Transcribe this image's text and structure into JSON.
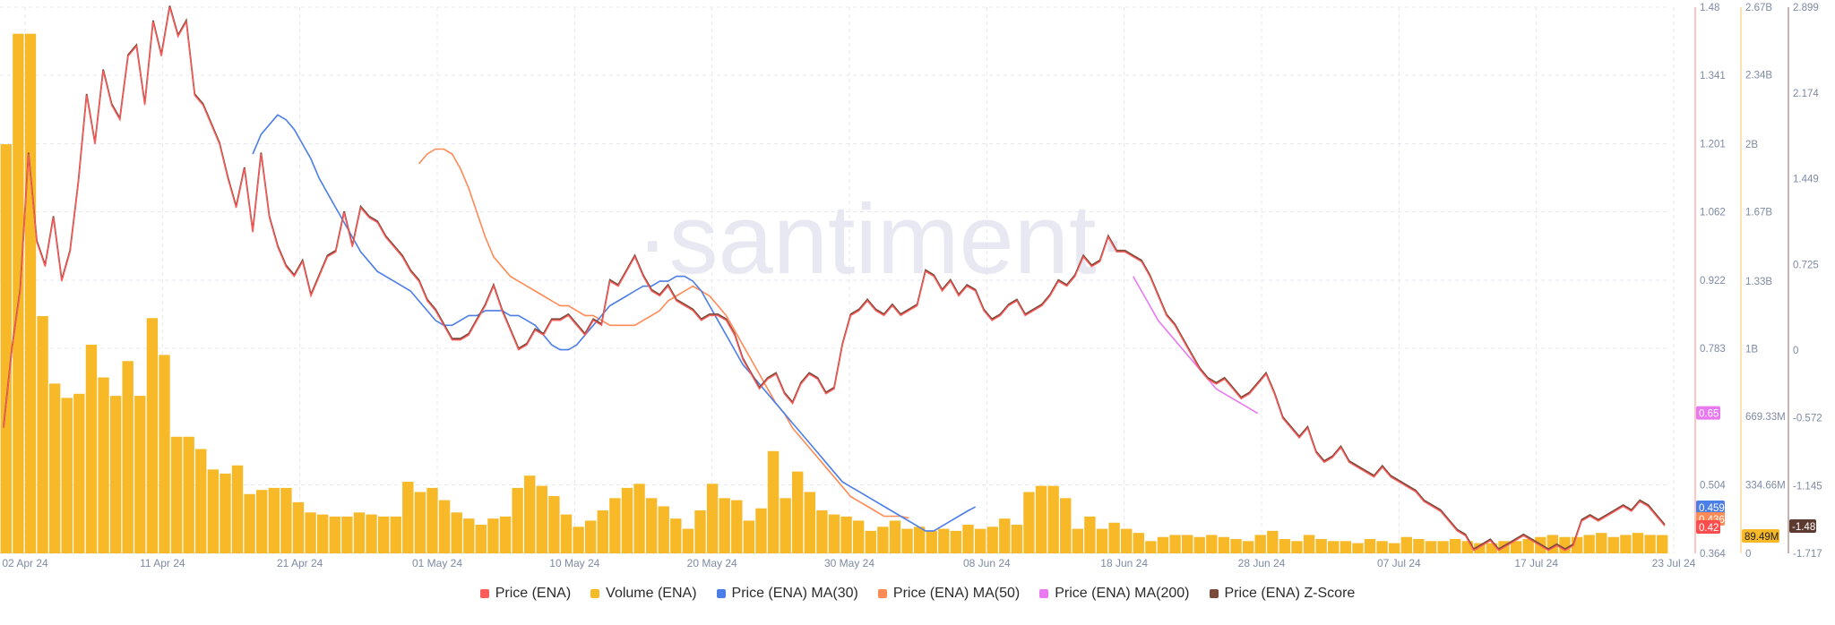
{
  "watermark": "·santiment·",
  "chart_data": {
    "type": "line",
    "x_labels": [
      "02 Apr 24",
      "11 Apr 24",
      "21 Apr 24",
      "01 May 24",
      "10 May 24",
      "20 May 24",
      "30 May 24",
      "08 Jun 24",
      "18 Jun 24",
      "28 Jun 24",
      "07 Jul 24",
      "17 Jul 24",
      "23 Jul 24"
    ],
    "axes": {
      "price": {
        "ticks": [
          "1.48",
          "1.341",
          "1.201",
          "1.062",
          "0.922",
          "0.783",
          "0.504",
          "0.364"
        ],
        "range": [
          0.364,
          1.48
        ],
        "color": "#ff5b5b"
      },
      "volume": {
        "ticks": [
          "2.67B",
          "2.34B",
          "2B",
          "1.67B",
          "1.33B",
          "1B",
          "669.33M",
          "334.66M",
          "0"
        ],
        "range": [
          0,
          2670000000
        ],
        "color": "#f7b928"
      },
      "zscore": {
        "ticks": [
          "2.899",
          "2.174",
          "1.449",
          "0.725",
          "0",
          "-0.572",
          "-1.145",
          "-1.717"
        ],
        "range": [
          -1.717,
          2.899
        ],
        "color": "#7a4a3a"
      }
    },
    "badges": {
      "price_ma30": "0.459",
      "price_ma50": "0.436",
      "price": "0.42",
      "price_ma200": "0.65",
      "volume": "89.49M",
      "zscore": "-1.48"
    },
    "series": [
      {
        "name": "Price (ENA)",
        "color": "#ff5b5b",
        "axis": "price",
        "values": [
          0.62,
          0.78,
          0.9,
          1.18,
          1.0,
          0.95,
          1.05,
          0.92,
          0.98,
          1.12,
          1.3,
          1.2,
          1.35,
          1.28,
          1.25,
          1.38,
          1.4,
          1.28,
          1.45,
          1.38,
          1.48,
          1.42,
          1.45,
          1.3,
          1.28,
          1.24,
          1.2,
          1.13,
          1.07,
          1.15,
          1.02,
          1.18,
          1.05,
          0.99,
          0.95,
          0.93,
          0.96,
          0.89,
          0.93,
          0.97,
          0.98,
          1.06,
          0.99,
          1.07,
          1.05,
          1.04,
          1.01,
          0.99,
          0.97,
          0.94,
          0.92,
          0.88,
          0.86,
          0.83,
          0.8,
          0.8,
          0.81,
          0.84,
          0.87,
          0.91,
          0.86,
          0.82,
          0.78,
          0.79,
          0.82,
          0.81,
          0.84,
          0.84,
          0.85,
          0.83,
          0.81,
          0.84,
          0.83,
          0.92,
          0.91,
          0.94,
          0.97,
          0.93,
          0.9,
          0.89,
          0.91,
          0.88,
          0.87,
          0.86,
          0.84,
          0.85,
          0.85,
          0.84,
          0.81,
          0.76,
          0.73,
          0.7,
          0.72,
          0.73,
          0.69,
          0.67,
          0.71,
          0.73,
          0.72,
          0.69,
          0.7,
          0.79,
          0.85,
          0.86,
          0.88,
          0.86,
          0.85,
          0.87,
          0.85,
          0.86,
          0.87,
          0.94,
          0.93,
          0.9,
          0.92,
          0.89,
          0.91,
          0.9,
          0.86,
          0.84,
          0.85,
          0.87,
          0.88,
          0.85,
          0.86,
          0.87,
          0.89,
          0.92,
          0.91,
          0.93,
          0.97,
          0.95,
          0.96,
          1.01,
          0.98,
          0.98,
          0.97,
          0.96,
          0.93,
          0.89,
          0.85,
          0.83,
          0.8,
          0.77,
          0.74,
          0.72,
          0.71,
          0.72,
          0.7,
          0.68,
          0.69,
          0.71,
          0.73,
          0.69,
          0.64,
          0.62,
          0.6,
          0.62,
          0.57,
          0.55,
          0.56,
          0.58,
          0.55,
          0.54,
          0.53,
          0.52,
          0.54,
          0.52,
          0.51,
          0.5,
          0.49,
          0.47,
          0.46,
          0.45,
          0.43,
          0.41,
          0.4,
          0.37,
          0.38,
          0.39,
          0.37,
          0.38,
          0.39,
          0.4,
          0.39,
          0.38,
          0.37,
          0.38,
          0.37,
          0.38,
          0.43,
          0.44,
          0.43,
          0.44,
          0.45,
          0.46,
          0.45,
          0.47,
          0.46,
          0.44,
          0.42
        ]
      },
      {
        "name": "Volume (ENA)",
        "color": "#f7b928",
        "axis": "volume",
        "values": [
          2000000000,
          2540000000,
          2540000000,
          1160000000,
          830000000,
          760000000,
          780000000,
          1020000000,
          860000000,
          770000000,
          940000000,
          770000000,
          1150000000,
          970000000,
          570000000,
          570000000,
          510000000,
          410000000,
          390000000,
          430000000,
          290000000,
          310000000,
          320000000,
          320000000,
          250000000,
          200000000,
          190000000,
          180000000,
          180000000,
          200000000,
          190000000,
          180000000,
          180000000,
          350000000,
          300000000,
          320000000,
          260000000,
          200000000,
          170000000,
          140000000,
          170000000,
          180000000,
          320000000,
          380000000,
          330000000,
          280000000,
          190000000,
          130000000,
          160000000,
          210000000,
          270000000,
          320000000,
          340000000,
          270000000,
          230000000,
          170000000,
          120000000,
          210000000,
          340000000,
          270000000,
          260000000,
          160000000,
          220000000,
          500000000,
          270000000,
          400000000,
          300000000,
          210000000,
          190000000,
          180000000,
          160000000,
          110000000,
          130000000,
          160000000,
          120000000,
          130000000,
          110000000,
          120000000,
          110000000,
          140000000,
          120000000,
          130000000,
          170000000,
          140000000,
          300000000,
          330000000,
          330000000,
          270000000,
          120000000,
          180000000,
          120000000,
          150000000,
          120000000,
          100000000,
          60000000,
          80000000,
          90000000,
          90000000,
          80000000,
          90000000,
          80000000,
          70000000,
          60000000,
          90000000,
          110000000,
          70000000,
          60000000,
          90000000,
          70000000,
          60000000,
          60000000,
          50000000,
          70000000,
          60000000,
          50000000,
          80000000,
          70000000,
          60000000,
          60000000,
          70000000,
          60000000,
          50000000,
          50000000,
          60000000,
          60000000,
          70000000,
          80000000,
          90000000,
          80000000,
          80000000,
          90000000,
          100000000,
          80000000,
          90000000,
          100000000,
          90000000,
          89490000
        ]
      },
      {
        "name": "Price (ENA) MA(30)",
        "color": "#4c7ee8",
        "axis": "price",
        "start_index": 30,
        "values": [
          1.18,
          1.22,
          1.24,
          1.26,
          1.25,
          1.23,
          1.2,
          1.17,
          1.13,
          1.1,
          1.07,
          1.04,
          1.01,
          0.98,
          0.96,
          0.94,
          0.93,
          0.92,
          0.91,
          0.9,
          0.88,
          0.86,
          0.84,
          0.83,
          0.83,
          0.84,
          0.85,
          0.85,
          0.86,
          0.86,
          0.86,
          0.85,
          0.85,
          0.84,
          0.83,
          0.81,
          0.79,
          0.78,
          0.78,
          0.79,
          0.81,
          0.83,
          0.85,
          0.87,
          0.88,
          0.89,
          0.9,
          0.91,
          0.91,
          0.92,
          0.92,
          0.93,
          0.93,
          0.92,
          0.9,
          0.87,
          0.84,
          0.81,
          0.78,
          0.75,
          0.73,
          0.71,
          0.69,
          0.67,
          0.65,
          0.63,
          0.61,
          0.59,
          0.57,
          0.55,
          0.53,
          0.51,
          0.5,
          0.49,
          0.48,
          0.47,
          0.46,
          0.45,
          0.44,
          0.43,
          0.42,
          0.41,
          0.41,
          0.42,
          0.43,
          0.44,
          0.45,
          0.459
        ]
      },
      {
        "name": "Price (ENA) MA(50)",
        "color": "#ff8a55",
        "axis": "price",
        "start_index": 50,
        "values": [
          1.16,
          1.18,
          1.19,
          1.19,
          1.18,
          1.15,
          1.11,
          1.06,
          1.01,
          0.97,
          0.95,
          0.93,
          0.92,
          0.91,
          0.9,
          0.89,
          0.88,
          0.87,
          0.87,
          0.86,
          0.85,
          0.85,
          0.84,
          0.83,
          0.83,
          0.83,
          0.83,
          0.84,
          0.85,
          0.86,
          0.88,
          0.89,
          0.9,
          0.91,
          0.9,
          0.89,
          0.87,
          0.85,
          0.82,
          0.79,
          0.76,
          0.73,
          0.7,
          0.67,
          0.65,
          0.62,
          0.6,
          0.58,
          0.56,
          0.54,
          0.52,
          0.5,
          0.48,
          0.47,
          0.46,
          0.45,
          0.44,
          0.44,
          0.44,
          0.436
        ]
      },
      {
        "name": "Price (ENA) MA(200)",
        "color": "#e879f0",
        "axis": "price",
        "start_index": 136,
        "values": [
          0.93,
          0.9,
          0.87,
          0.84,
          0.82,
          0.8,
          0.78,
          0.76,
          0.74,
          0.72,
          0.7,
          0.69,
          0.68,
          0.67,
          0.66,
          0.65
        ]
      },
      {
        "name": "Price (ENA) Z-Score",
        "color": "#7a4a3a",
        "axis": "zscore",
        "derived_from": "Price (ENA)"
      }
    ]
  },
  "legend": [
    {
      "label": "Price (ENA)",
      "color": "#ff5b5b"
    },
    {
      "label": "Volume (ENA)",
      "color": "#f7b928"
    },
    {
      "label": "Price (ENA) MA(30)",
      "color": "#4c7ee8"
    },
    {
      "label": "Price (ENA) MA(50)",
      "color": "#ff8a55"
    },
    {
      "label": "Price (ENA) MA(200)",
      "color": "#e879f0"
    },
    {
      "label": "Price (ENA) Z-Score",
      "color": "#7a4a3a"
    }
  ]
}
